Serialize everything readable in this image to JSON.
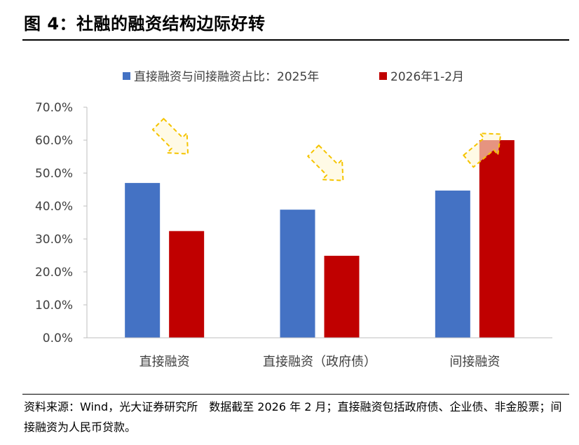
{
  "figure": {
    "title": "图 4：社融的融资结构边际好转",
    "source": "资料来源：Wind，光大证券研究所　数据截至 2026 年 2 月；直接融资包括政府债、企业债、非金股票；间接融资为人民币贷款。"
  },
  "chart_data": {
    "type": "bar",
    "categories": [
      "直接融资",
      "直接融资（政府债）",
      "间接融资"
    ],
    "series": [
      {
        "name": "直接融资与间接融资占比：2025年",
        "values": [
          47.0,
          38.9,
          44.7
        ],
        "color": "#4472C4"
      },
      {
        "name": "2026年1-2月",
        "values": [
          32.4,
          24.9,
          60.0
        ],
        "color": "#C00000"
      }
    ],
    "ylim": [
      0,
      70
    ],
    "yticks": [
      "0.0%",
      "10.0%",
      "20.0%",
      "30.0%",
      "40.0%",
      "50.0%",
      "60.0%",
      "70.0%"
    ],
    "xlabel": "",
    "ylabel": "",
    "legend_position": "top",
    "grid": false,
    "annotations": [
      {
        "type": "arrow",
        "direction": "down",
        "category": "直接融资",
        "color": "#F5C400"
      },
      {
        "type": "arrow",
        "direction": "down",
        "category": "直接融资（政府债）",
        "color": "#F5C400"
      },
      {
        "type": "arrow",
        "direction": "up",
        "category": "间接融资",
        "color": "#F5C400"
      }
    ]
  }
}
